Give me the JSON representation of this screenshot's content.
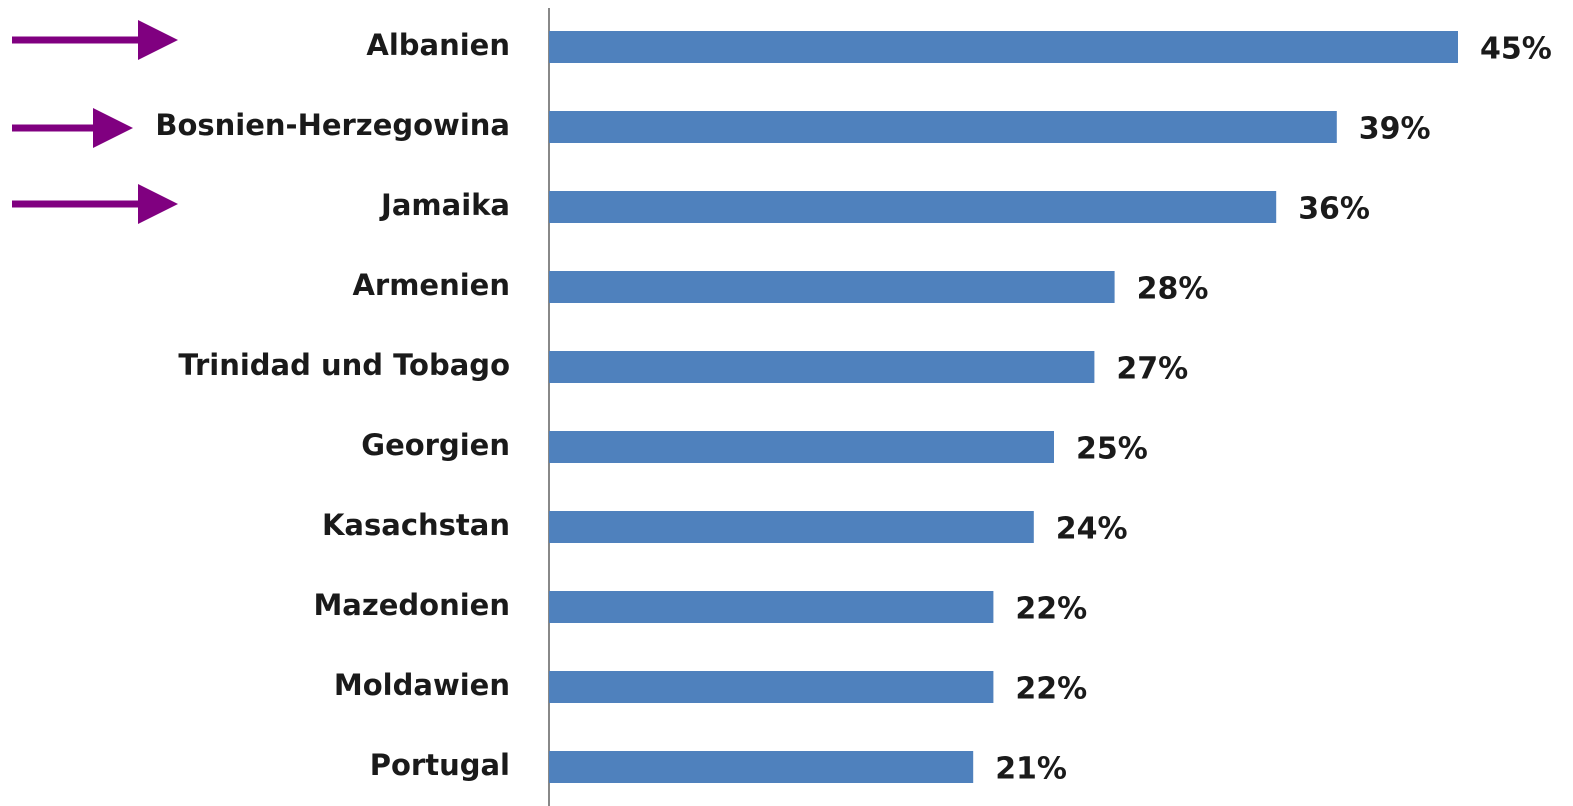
{
  "chart_data": {
    "type": "barh",
    "categories": [
      "Albanien",
      "Bosnien-Herzegowina",
      "Jamaika",
      "Armenien",
      "Trinidad und Tobago",
      "Georgien",
      "Kasachstan",
      "Mazedonien",
      "Moldawien",
      "Portugal"
    ],
    "values": [
      45,
      39,
      36,
      28,
      27,
      25,
      24,
      22,
      22,
      21
    ],
    "value_labels": [
      "45%",
      "39%",
      "36%",
      "28%",
      "27%",
      "25%",
      "24%",
      "22%",
      "22%",
      "21%"
    ],
    "color": "#4f81bd",
    "xlim": [
      0,
      45
    ]
  }
}
